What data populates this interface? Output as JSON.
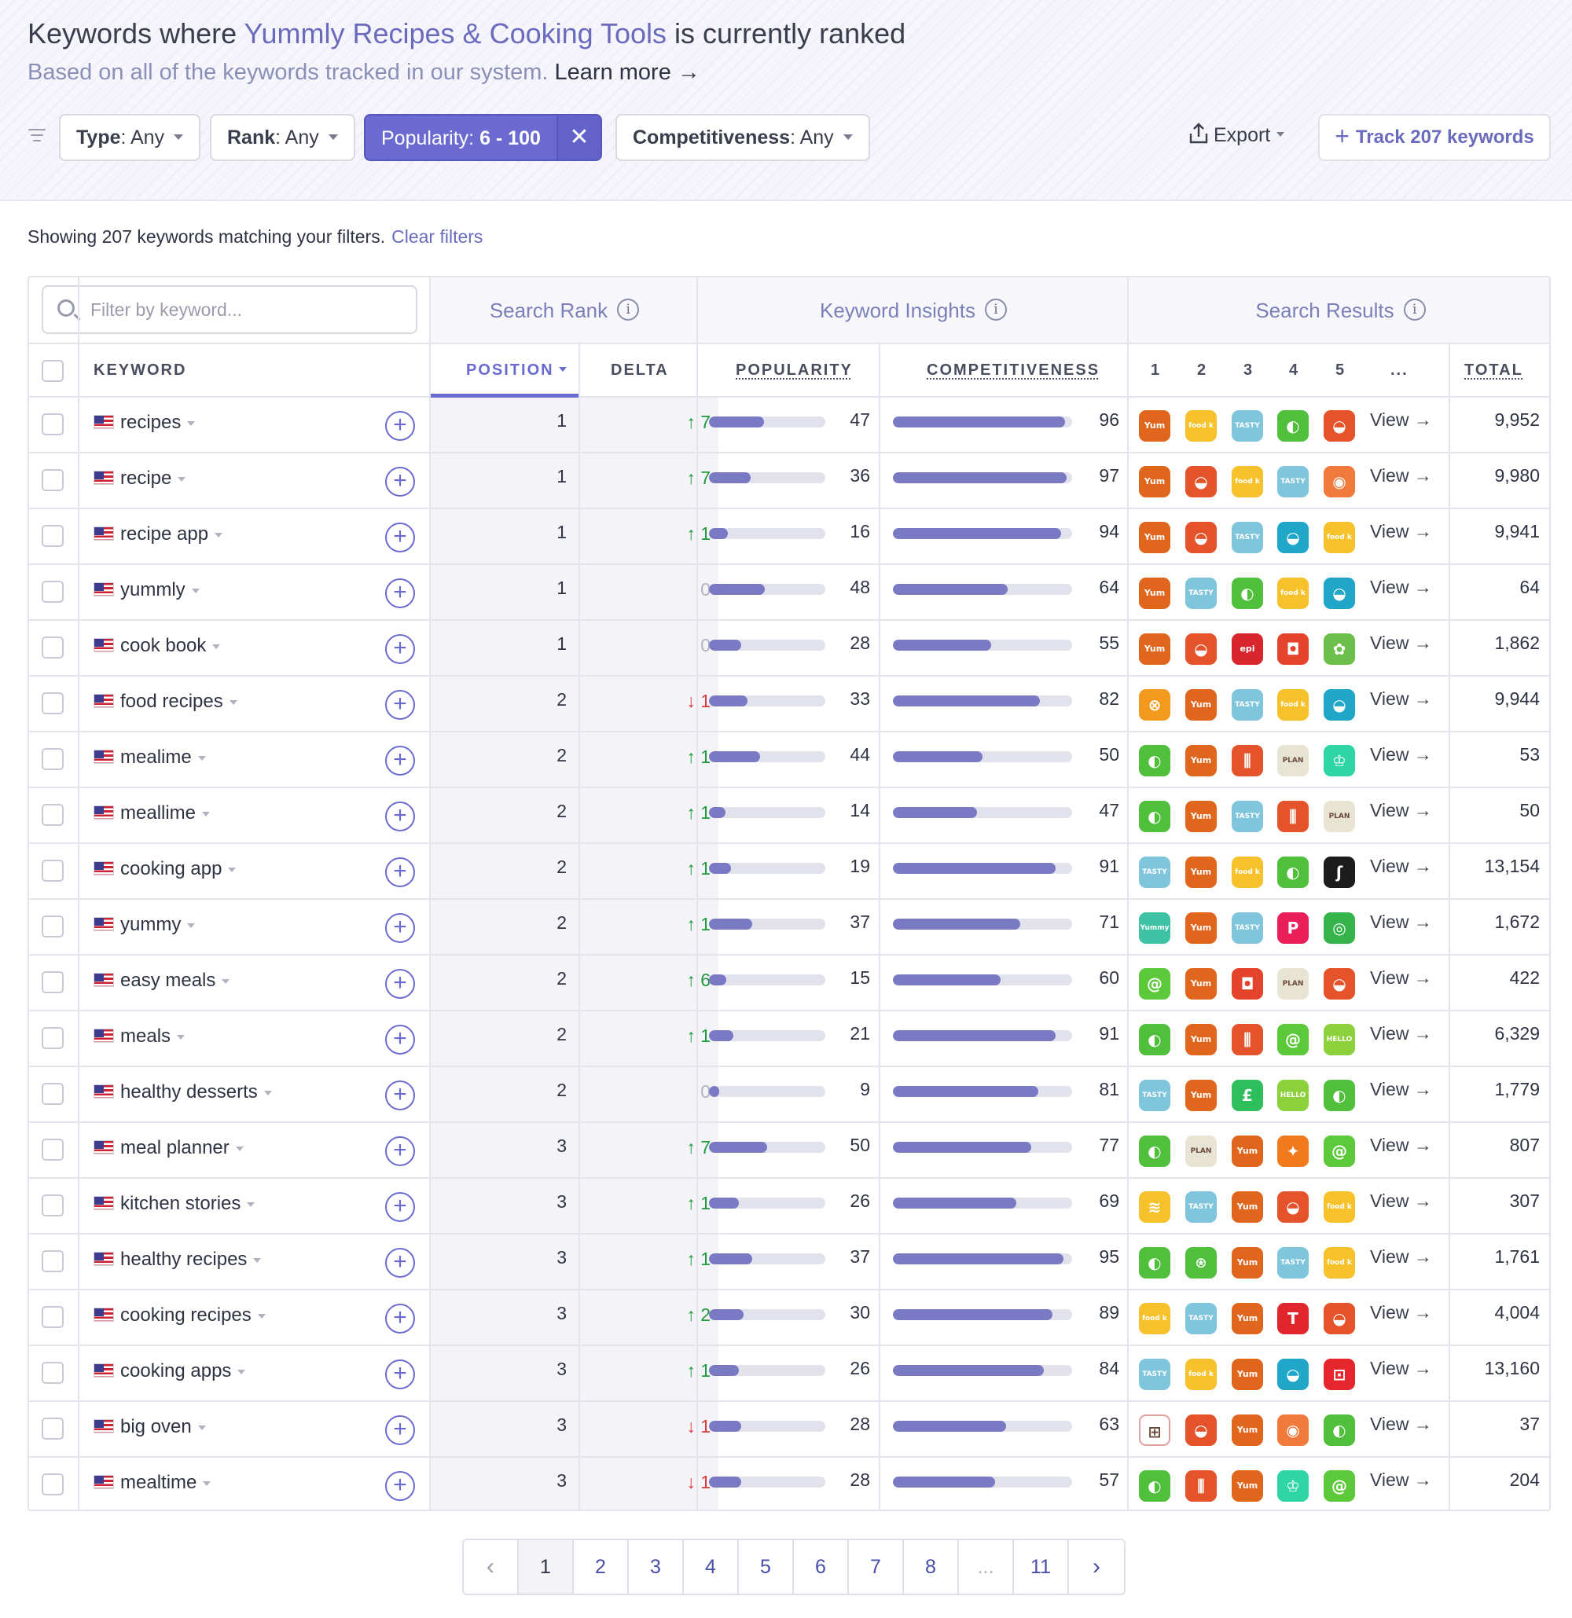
{
  "header": {
    "title_prefix": "Keywords where ",
    "app_name": "Yummly Recipes & Cooking Tools",
    "title_suffix": " is currently ranked",
    "subtitle": "Based on all of the keywords tracked in our system.",
    "learn_more": "Learn more →"
  },
  "filters": {
    "type_label": "Type",
    "type_value": ": Any",
    "rank_label": "Rank",
    "rank_value": ": Any",
    "popularity_label": "Popularity: ",
    "popularity_value": "6 - 100",
    "clear_x": "✕",
    "comp_label": "Competitiveness",
    "comp_value": ": Any",
    "export": "Export",
    "track": "Track 207 keywords"
  },
  "summary": {
    "text": "Showing 207 keywords matching your filters.",
    "clear": "Clear filters"
  },
  "table": {
    "search_placeholder": "Filter by keyword...",
    "group_rank": "Search Rank",
    "group_insights": "Keyword Insights",
    "group_results": "Search Results",
    "info": "i",
    "col_keyword": "KEYWORD",
    "col_position": "POSITION",
    "col_delta": "DELTA",
    "col_popularity": "POPULARITY",
    "col_competitiveness": "COMPETITIVENESS",
    "col_r1": "1",
    "col_r2": "2",
    "col_r3": "3",
    "col_r4": "4",
    "col_r5": "5",
    "col_more": "...",
    "col_total": "TOTAL",
    "view_label": "View →"
  },
  "icon_legend": {
    "yum": {
      "label": "Yum",
      "color": "#e0661e"
    },
    "food": {
      "label": "food k",
      "color": "#f6c12b"
    },
    "tasty": {
      "label": "TASTY",
      "color": "#7fc6dd"
    },
    "lime": {
      "label": "◐",
      "color": "#4fbf3c"
    },
    "bowl": {
      "label": "◒",
      "color": "#e5532a"
    },
    "cook": {
      "label": "◉",
      "color": "#f07a3c"
    },
    "teal": {
      "label": "◒",
      "color": "#1fa6c9"
    },
    "epi": {
      "label": "epi",
      "color": "#d9262c"
    },
    "pot": {
      "label": "◘",
      "color": "#e4442c"
    },
    "salad": {
      "label": "✿",
      "color": "#6cbf4a"
    },
    "pizza": {
      "label": "⊗",
      "color": "#f39a1e"
    },
    "mealime": {
      "label": "◐",
      "color": "#4fbf3c"
    },
    "fork": {
      "label": "⫼",
      "color": "#e5532a"
    },
    "planeat": {
      "label": "PLAN EAT",
      "color": "#e8e4d4"
    },
    "chef": {
      "label": "♔",
      "color": "#2fd5a5"
    },
    "swirl": {
      "label": "ʃ",
      "color": "#1c1c1c"
    },
    "yummy": {
      "label": "Yummy",
      "color": "#3fc2a4"
    },
    "p": {
      "label": "P",
      "color": "#ea1f5a"
    },
    "ring": {
      "label": "◎",
      "color": "#34b44a"
    },
    "spiral": {
      "label": "@",
      "color": "#5cc93a"
    },
    "hello": {
      "label": "HELLO FRESH",
      "color": "#8cd13c"
    },
    "lmoney": {
      "label": "£",
      "color": "#2fbe5c"
    },
    "chicken": {
      "label": "✦",
      "color": "#f07a1c"
    },
    "wavy": {
      "label": "≋",
      "color": "#f6c12b"
    },
    "apple": {
      "label": "⍟",
      "color": "#4fbf3c"
    },
    "t": {
      "label": "T",
      "color": "#e0262c"
    },
    "bag": {
      "label": "⊡",
      "color": "#e5262c"
    },
    "grid": {
      "label": "⊞",
      "color": "#ffffff"
    }
  },
  "rows": [
    {
      "kw": "recipes",
      "pos": "1",
      "delta": "7",
      "dir": "up",
      "pop": 47,
      "comp": 96,
      "icons": [
        "yum",
        "food",
        "tasty",
        "lime",
        "bowl"
      ],
      "total": "9,952"
    },
    {
      "kw": "recipe",
      "pos": "1",
      "delta": "7",
      "dir": "up",
      "pop": 36,
      "comp": 97,
      "icons": [
        "yum",
        "bowl",
        "food",
        "tasty",
        "cook"
      ],
      "total": "9,980"
    },
    {
      "kw": "recipe app",
      "pos": "1",
      "delta": "1",
      "dir": "up",
      "pop": 16,
      "comp": 94,
      "icons": [
        "yum",
        "bowl",
        "tasty",
        "teal",
        "food"
      ],
      "total": "9,941"
    },
    {
      "kw": "yummly",
      "pos": "1",
      "delta": "0",
      "dir": "z",
      "pop": 48,
      "comp": 64,
      "icons": [
        "yum",
        "tasty",
        "lime",
        "food",
        "teal"
      ],
      "total": "64"
    },
    {
      "kw": "cook book",
      "pos": "1",
      "delta": "0",
      "dir": "z",
      "pop": 28,
      "comp": 55,
      "icons": [
        "yum",
        "bowl",
        "epi",
        "pot",
        "salad"
      ],
      "total": "1,862"
    },
    {
      "kw": "food recipes",
      "pos": "2",
      "delta": "1",
      "dir": "dn",
      "pop": 33,
      "comp": 82,
      "icons": [
        "pizza",
        "yum",
        "tasty",
        "food",
        "teal"
      ],
      "total": "9,944"
    },
    {
      "kw": "mealime",
      "pos": "2",
      "delta": "1",
      "dir": "up",
      "pop": 44,
      "comp": 50,
      "icons": [
        "mealime",
        "yum",
        "fork",
        "planeat",
        "chef"
      ],
      "total": "53"
    },
    {
      "kw": "meallime",
      "pos": "2",
      "delta": "1",
      "dir": "up",
      "pop": 14,
      "comp": 47,
      "icons": [
        "mealime",
        "yum",
        "tasty",
        "fork",
        "planeat"
      ],
      "total": "50"
    },
    {
      "kw": "cooking app",
      "pos": "2",
      "delta": "1",
      "dir": "up",
      "pop": 19,
      "comp": 91,
      "icons": [
        "tasty",
        "yum",
        "food",
        "lime",
        "swirl"
      ],
      "total": "13,154"
    },
    {
      "kw": "yummy",
      "pos": "2",
      "delta": "1",
      "dir": "up",
      "pop": 37,
      "comp": 71,
      "icons": [
        "yummy",
        "yum",
        "tasty",
        "p",
        "ring"
      ],
      "total": "1,672"
    },
    {
      "kw": "easy meals",
      "pos": "2",
      "delta": "6",
      "dir": "up",
      "pop": 15,
      "comp": 60,
      "icons": [
        "spiral",
        "yum",
        "pot",
        "planeat",
        "bowl"
      ],
      "total": "422"
    },
    {
      "kw": "meals",
      "pos": "2",
      "delta": "1",
      "dir": "up",
      "pop": 21,
      "comp": 91,
      "icons": [
        "mealime",
        "yum",
        "fork",
        "spiral",
        "hello"
      ],
      "total": "6,329"
    },
    {
      "kw": "healthy desserts",
      "pos": "2",
      "delta": "0",
      "dir": "z",
      "pop": 9,
      "comp": 81,
      "icons": [
        "tasty",
        "yum",
        "lmoney",
        "hello",
        "lime"
      ],
      "total": "1,779"
    },
    {
      "kw": "meal planner",
      "pos": "3",
      "delta": "7",
      "dir": "up",
      "pop": 50,
      "comp": 77,
      "icons": [
        "mealime",
        "planeat",
        "yum",
        "chicken",
        "spiral"
      ],
      "total": "807"
    },
    {
      "kw": "kitchen stories",
      "pos": "3",
      "delta": "1",
      "dir": "up",
      "pop": 26,
      "comp": 69,
      "icons": [
        "wavy",
        "tasty",
        "yum",
        "bowl",
        "food"
      ],
      "total": "307"
    },
    {
      "kw": "healthy recipes",
      "pos": "3",
      "delta": "1",
      "dir": "up",
      "pop": 37,
      "comp": 95,
      "icons": [
        "mealime",
        "apple",
        "yum",
        "tasty",
        "food"
      ],
      "total": "1,761"
    },
    {
      "kw": "cooking recipes",
      "pos": "3",
      "delta": "2",
      "dir": "up",
      "pop": 30,
      "comp": 89,
      "icons": [
        "food",
        "tasty",
        "yum",
        "t",
        "bowl"
      ],
      "total": "4,004"
    },
    {
      "kw": "cooking apps",
      "pos": "3",
      "delta": "1",
      "dir": "up",
      "pop": 26,
      "comp": 84,
      "icons": [
        "tasty",
        "food",
        "yum",
        "teal",
        "bag"
      ],
      "total": "13,160"
    },
    {
      "kw": "big oven",
      "pos": "3",
      "delta": "1",
      "dir": "dn",
      "pop": 28,
      "comp": 63,
      "icons": [
        "grid",
        "bowl",
        "yum",
        "cook",
        "lime"
      ],
      "total": "37"
    },
    {
      "kw": "mealtime",
      "pos": "3",
      "delta": "1",
      "dir": "dn",
      "pop": 28,
      "comp": 57,
      "icons": [
        "mealime",
        "fork",
        "yum",
        "chef",
        "spiral"
      ],
      "total": "204"
    }
  ],
  "pagination": {
    "prev": "‹",
    "pages": [
      "1",
      "2",
      "3",
      "4",
      "5",
      "6",
      "7",
      "8",
      "...",
      "11"
    ],
    "current": "1",
    "next": "›"
  }
}
